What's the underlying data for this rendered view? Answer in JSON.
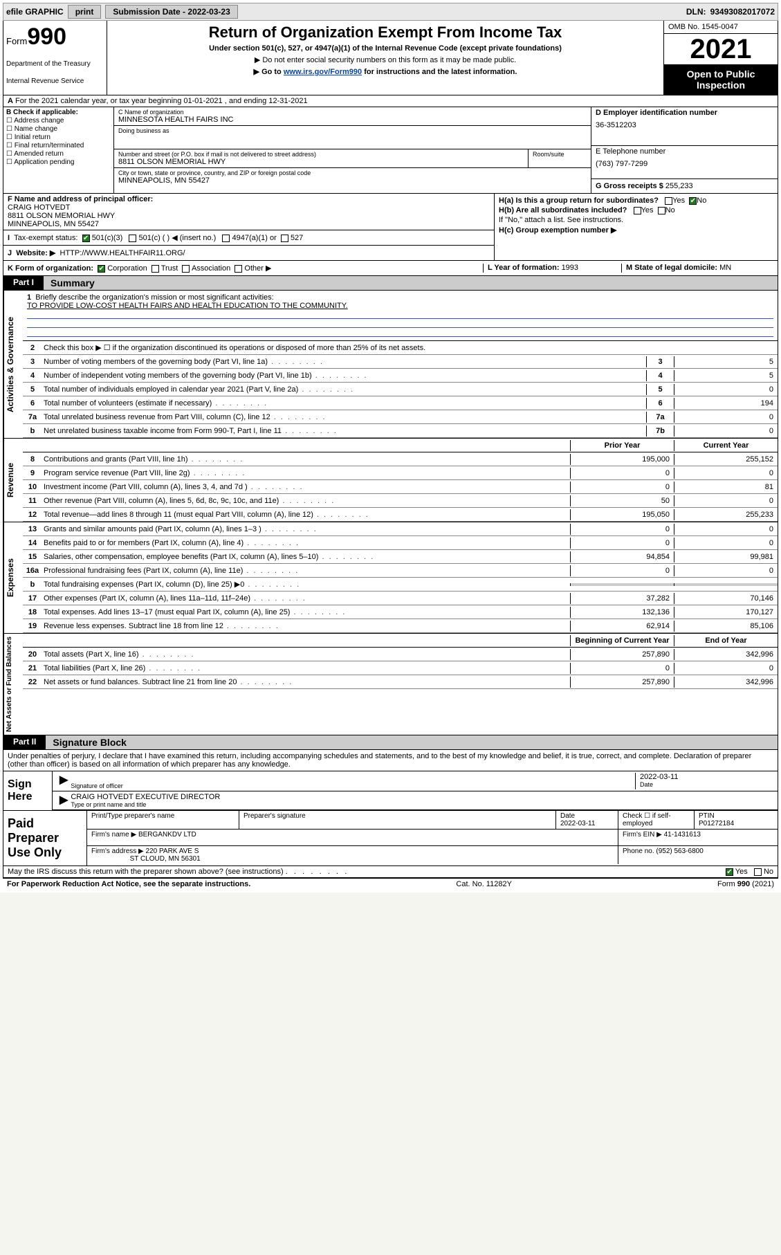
{
  "topbar": {
    "efile": "efile GRAPHIC",
    "print": "print",
    "subdate_lbl": "Submission Date - ",
    "subdate": "2022-03-23",
    "dln_lbl": "DLN: ",
    "dln": "93493082017072"
  },
  "head": {
    "form_prefix": "Form",
    "form_no": "990",
    "dept": "Department of the Treasury",
    "irs": "Internal Revenue Service",
    "title": "Return of Organization Exempt From Income Tax",
    "sub": "Under section 501(c), 527, or 4947(a)(1) of the Internal Revenue Code (except private foundations)",
    "line1": "▶ Do not enter social security numbers on this form as it may be made public.",
    "line2_pre": "▶ Go to ",
    "line2_link": "www.irs.gov/Form990",
    "line2_post": " for instructions and the latest information.",
    "omb": "OMB No. 1545-0047",
    "year": "2021",
    "opi": "Open to Public Inspection"
  },
  "rowA": {
    "text": "For the 2021 calendar year, or tax year beginning 01-01-2021   , and ending 12-31-2021",
    "label": "A"
  },
  "colB": {
    "hdr": "B Check if applicable:",
    "items": [
      "Address change",
      "Name change",
      "Initial return",
      "Final return/terminated",
      "Amended return",
      "Application pending"
    ]
  },
  "colC": {
    "name_lbl": "C Name of organization",
    "name": "MINNESOTA HEALTH FAIRS INC",
    "dba_lbl": "Doing business as",
    "street_lbl": "Number and street (or P.O. box if mail is not delivered to street address)",
    "street": "8811 OLSON MEMORIAL HWY",
    "suite_lbl": "Room/suite",
    "city_lbl": "City or town, state or province, country, and ZIP or foreign postal code",
    "city": "MINNEAPOLIS, MN  55427"
  },
  "colD": {
    "ein_lbl": "D Employer identification number",
    "ein": "36-3512203",
    "tel_lbl": "E Telephone number",
    "tel": "(763) 797-7299",
    "gross_lbl": "G Gross receipts $ ",
    "gross": "255,233"
  },
  "rowF": {
    "lbl": "F  Name and address of principal officer:",
    "name": "CRAIG HOTVEDT",
    "addr1": "8811 OLSON MEMORIAL HWY",
    "addr2": "MINNEAPOLIS, MN  55427"
  },
  "rowI": {
    "lbl": "Tax-exempt status:",
    "opt1": "501(c)(3)",
    "opt2": "501(c) (  ) ◀ (insert no.)",
    "opt3": "4947(a)(1) or",
    "opt4": "527"
  },
  "rowJ": {
    "lbl": "Website: ▶",
    "val": "HTTP://WWW.HEALTHFAIR11.ORG/"
  },
  "colH": {
    "a": "H(a)  Is this a group return for subordinates?",
    "a_yes": "Yes",
    "a_no": "No",
    "b": "H(b)  Are all subordinates included?",
    "b_yes": "Yes",
    "b_no": "No",
    "b_note": "If \"No,\" attach a list. See instructions.",
    "c": "H(c)  Group exemption number ▶"
  },
  "rowK": {
    "lbl": "K Form of organization:",
    "opts": [
      "Corporation",
      "Trust",
      "Association",
      "Other ▶"
    ],
    "yof_lbl": "L Year of formation: ",
    "yof": "1993",
    "dom_lbl": "M State of legal domicile: ",
    "dom": "MN"
  },
  "partI": {
    "hdr": "Part I",
    "title": "Summary"
  },
  "actgov": {
    "tab": "Activities & Governance",
    "q1_lbl": "Briefly describe the organization's mission or most significant activities:",
    "q1_val": "TO PROVIDE LOW-COST HEALTH FAIRS AND HEALTH EDUCATION TO THE COMMUNITY.",
    "q2": "Check this box ▶ ☐  if the organization discontinued its operations or disposed of more than 25% of its net assets.",
    "rows": [
      {
        "n": "3",
        "t": "Number of voting members of the governing body (Part VI, line 1a)",
        "box": "3",
        "v": "5"
      },
      {
        "n": "4",
        "t": "Number of independent voting members of the governing body (Part VI, line 1b)",
        "box": "4",
        "v": "5"
      },
      {
        "n": "5",
        "t": "Total number of individuals employed in calendar year 2021 (Part V, line 2a)",
        "box": "5",
        "v": "0"
      },
      {
        "n": "6",
        "t": "Total number of volunteers (estimate if necessary)",
        "box": "6",
        "v": "194"
      },
      {
        "n": "7a",
        "t": "Total unrelated business revenue from Part VIII, column (C), line 12",
        "box": "7a",
        "v": "0"
      },
      {
        "n": "b",
        "t": "Net unrelated business taxable income from Form 990-T, Part I, line 11",
        "box": "7b",
        "v": "0"
      }
    ]
  },
  "revenue": {
    "tab": "Revenue",
    "hdr_prior": "Prior Year",
    "hdr_curr": "Current Year",
    "rows": [
      {
        "n": "8",
        "t": "Contributions and grants (Part VIII, line 1h)",
        "p": "195,000",
        "c": "255,152"
      },
      {
        "n": "9",
        "t": "Program service revenue (Part VIII, line 2g)",
        "p": "0",
        "c": "0"
      },
      {
        "n": "10",
        "t": "Investment income (Part VIII, column (A), lines 3, 4, and 7d )",
        "p": "0",
        "c": "81"
      },
      {
        "n": "11",
        "t": "Other revenue (Part VIII, column (A), lines 5, 6d, 8c, 9c, 10c, and 11e)",
        "p": "50",
        "c": "0"
      },
      {
        "n": "12",
        "t": "Total revenue—add lines 8 through 11 (must equal Part VIII, column (A), line 12)",
        "p": "195,050",
        "c": "255,233"
      }
    ]
  },
  "expenses": {
    "tab": "Expenses",
    "rows": [
      {
        "n": "13",
        "t": "Grants and similar amounts paid (Part IX, column (A), lines 1–3 )",
        "p": "0",
        "c": "0"
      },
      {
        "n": "14",
        "t": "Benefits paid to or for members (Part IX, column (A), line 4)",
        "p": "0",
        "c": "0"
      },
      {
        "n": "15",
        "t": "Salaries, other compensation, employee benefits (Part IX, column (A), lines 5–10)",
        "p": "94,854",
        "c": "99,981"
      },
      {
        "n": "16a",
        "t": "Professional fundraising fees (Part IX, column (A), line 11e)",
        "p": "0",
        "c": "0"
      },
      {
        "n": "b",
        "t": "Total fundraising expenses (Part IX, column (D), line 25) ▶0",
        "p": "",
        "c": "",
        "shade": true
      },
      {
        "n": "17",
        "t": "Other expenses (Part IX, column (A), lines 11a–11d, 11f–24e)",
        "p": "37,282",
        "c": "70,146"
      },
      {
        "n": "18",
        "t": "Total expenses. Add lines 13–17 (must equal Part IX, column (A), line 25)",
        "p": "132,136",
        "c": "170,127"
      },
      {
        "n": "19",
        "t": "Revenue less expenses. Subtract line 18 from line 12",
        "p": "62,914",
        "c": "85,106"
      }
    ]
  },
  "netassets": {
    "tab": "Net Assets or Fund Balances",
    "hdr_prior": "Beginning of Current Year",
    "hdr_curr": "End of Year",
    "rows": [
      {
        "n": "20",
        "t": "Total assets (Part X, line 16)",
        "p": "257,890",
        "c": "342,996"
      },
      {
        "n": "21",
        "t": "Total liabilities (Part X, line 26)",
        "p": "0",
        "c": "0"
      },
      {
        "n": "22",
        "t": "Net assets or fund balances. Subtract line 21 from line 20",
        "p": "257,890",
        "c": "342,996"
      }
    ]
  },
  "partII": {
    "hdr": "Part II",
    "title": "Signature Block",
    "decl": "Under penalties of perjury, I declare that I have examined this return, including accompanying schedules and statements, and to the best of my knowledge and belief, it is true, correct, and complete. Declaration of preparer (other than officer) is based on all information of which preparer has any knowledge."
  },
  "sign": {
    "lbl": "Sign Here",
    "sig_lbl": "Signature of officer",
    "date": "2022-03-11",
    "date_lbl": "Date",
    "name": "CRAIG HOTVEDT  EXECUTIVE DIRECTOR",
    "name_lbl": "Type or print name and title"
  },
  "paid": {
    "lbl": "Paid Preparer Use Only",
    "c1": "Print/Type preparer's name",
    "c2": "Preparer's signature",
    "c3_lbl": "Date",
    "c3": "2022-03-11",
    "c4_lbl": "Check ☐ if self-employed",
    "c5_lbl": "PTIN",
    "c5": "P01272184",
    "firm_lbl": "Firm's name    ▶ ",
    "firm": "BERGANKDV LTD",
    "ein_lbl": "Firm's EIN ▶ ",
    "ein": "41-1431613",
    "addr_lbl": "Firm's address ▶ ",
    "addr1": "220 PARK AVE S",
    "addr2": "ST CLOUD, MN  56301",
    "phone_lbl": "Phone no. ",
    "phone": "(952) 563-6800"
  },
  "may": {
    "q": "May the IRS discuss this return with the preparer shown above? (see instructions)",
    "yes": "Yes",
    "no": "No"
  },
  "footer": {
    "left": "For Paperwork Reduction Act Notice, see the separate instructions.",
    "mid": "Cat. No. 11282Y",
    "right": "Form 990 (2021)"
  },
  "colors": {
    "bg": "#ffffff",
    "rule": "#000000",
    "link": "#0645ad",
    "shade": "#cccccc",
    "checked": "#1a7f1a",
    "uline": "#3355cc"
  }
}
